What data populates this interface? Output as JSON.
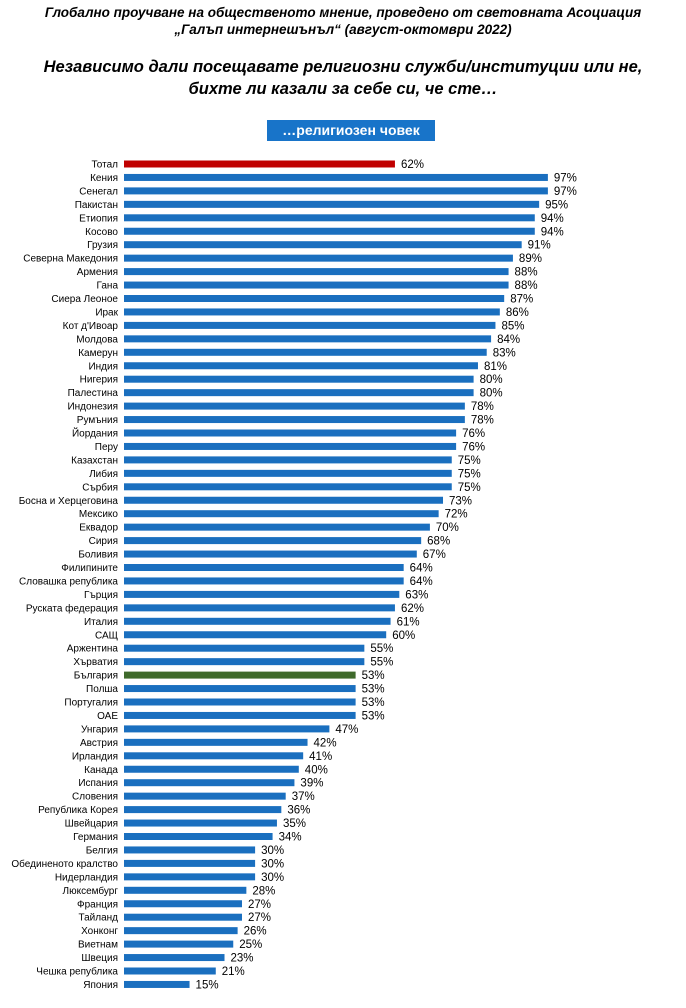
{
  "header": {
    "line1": "Глобално проучване на общественото мнение, проведено от световната Асоциация",
    "line2": "„Галъп интернешънъл“ (август-октомври 2022)"
  },
  "question": {
    "line1": "Независимо дали посещавате религиозни служби/институции или не,",
    "line2": "бихте ли казали за себе си, че сте…"
  },
  "answer_label": "…религиозен човек",
  "colors": {
    "default_bar": "#1a6fbf",
    "total_bar": "#c00000",
    "bulgaria_bar": "#3f6a2b",
    "pill": "#1874c9"
  },
  "chart_data": {
    "type": "bar",
    "orientation": "horizontal",
    "xlim": [
      0,
      100
    ],
    "value_suffix": "%",
    "highlights": {
      "Тотал": "#c00000",
      "България": "#3f6a2b"
    },
    "categories": [
      "Тотал",
      "Кения",
      "Сенегал",
      "Пакистан",
      "Етиопия",
      "Косово",
      "Грузия",
      "Северна Македония",
      "Армения",
      "Гана",
      "Сиера Леоное",
      "Ирак",
      "Кот д'Ивоар",
      "Молдова",
      "Камерун",
      "Индия",
      "Нигерия",
      "Палестина",
      "Индонезия",
      "Румъния",
      "Йордания",
      "Перу",
      "Казахстан",
      "Либия",
      "Сърбия",
      "Босна и Херцеговина",
      "Мексико",
      "Еквадор",
      "Сирия",
      "Боливия",
      "Филипините",
      "Словашка република",
      "Гърция",
      "Руската федерация",
      "Италия",
      "САЩ",
      "Аржентина",
      "Хърватия",
      "България",
      "Полша",
      "Португалия",
      "ОАЕ",
      "Унгария",
      "Австрия",
      "Ирландия",
      "Канада",
      "Испания",
      "Словения",
      "Република Корея",
      "Швейцария",
      "Германия",
      "Белгия",
      "Обединеното кралство",
      "Нидерландия",
      "Люксембург",
      "Франция",
      "Тайланд",
      "Хонконг",
      "Виетнам",
      "Швеция",
      "Чешка република",
      "Япония"
    ],
    "values": [
      62,
      97,
      97,
      95,
      94,
      94,
      91,
      89,
      88,
      88,
      87,
      86,
      85,
      84,
      83,
      81,
      80,
      80,
      78,
      78,
      76,
      76,
      75,
      75,
      75,
      73,
      72,
      70,
      68,
      67,
      64,
      64,
      63,
      62,
      61,
      60,
      55,
      55,
      53,
      53,
      53,
      53,
      47,
      42,
      41,
      40,
      39,
      37,
      36,
      35,
      34,
      30,
      30,
      30,
      28,
      27,
      27,
      26,
      25,
      23,
      21,
      15
    ]
  }
}
